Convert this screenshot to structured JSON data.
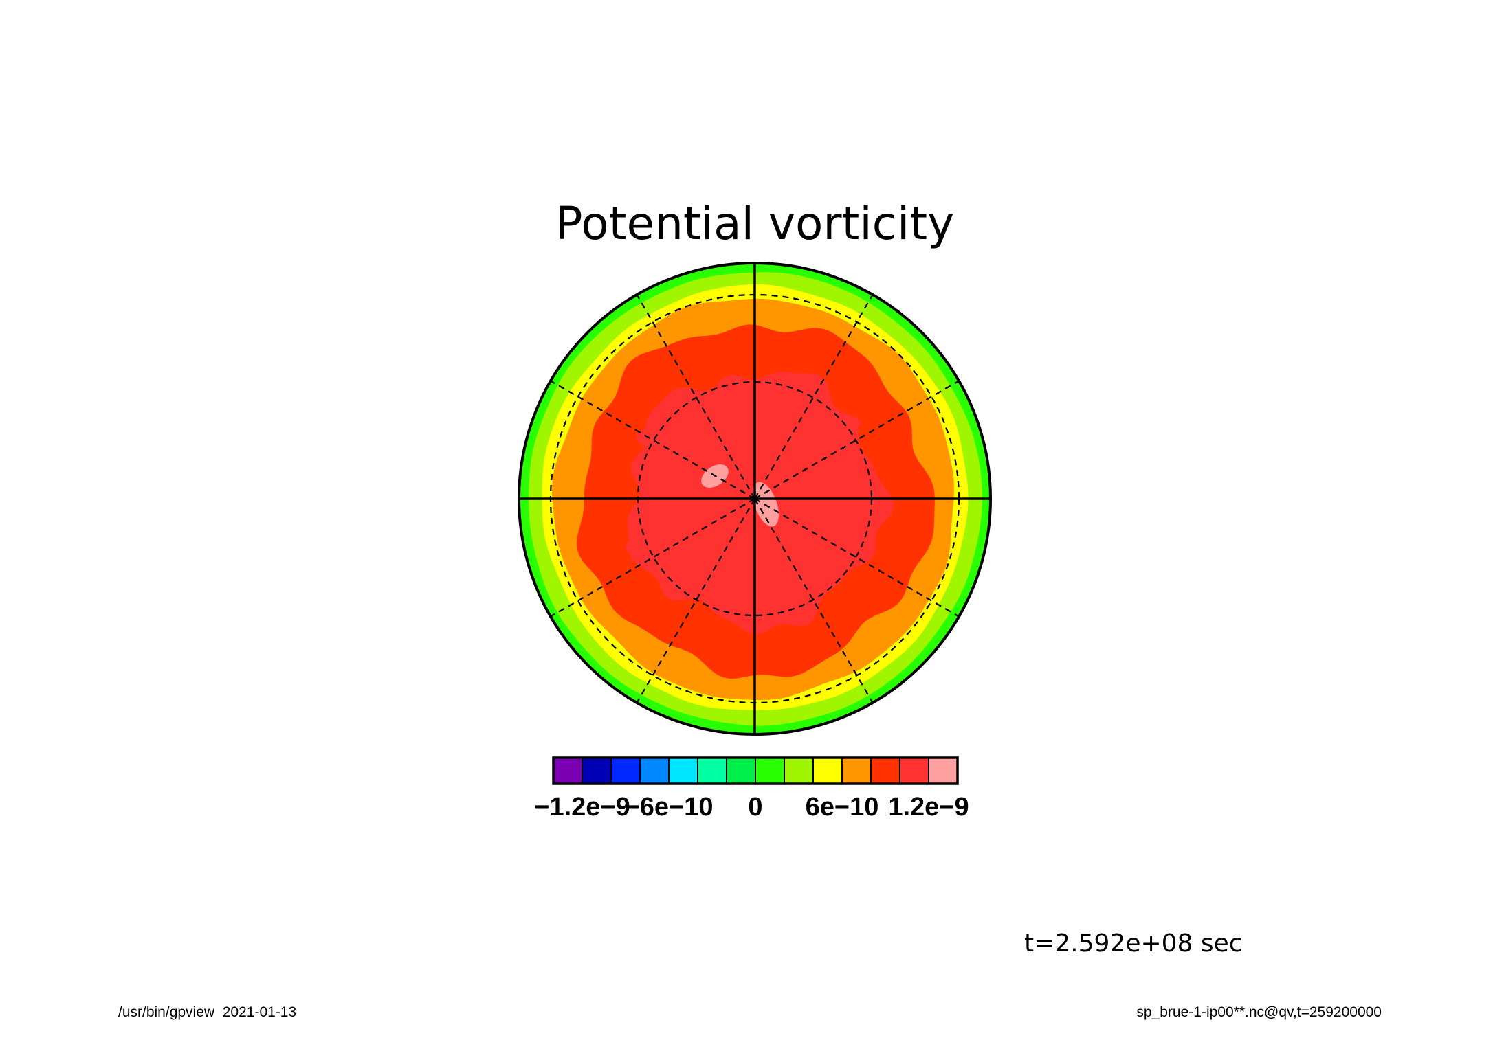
{
  "chart_data": {
    "type": "contour",
    "projection": "polar stereographic",
    "title": "Potential vorticity",
    "time_label": "t=2.592e+08 sec",
    "colorbar": {
      "colors": [
        "#7b00b4",
        "#0000b4",
        "#0028ff",
        "#0087ff",
        "#00e6ff",
        "#00ffa0",
        "#00f04b",
        "#28ff00",
        "#a0f500",
        "#ffff00",
        "#ff9600",
        "#ff3200",
        "#ff3232",
        "#ffa0a0"
      ],
      "tick_labels": [
        "−1.2e−9",
        "−6e−10",
        "0",
        "6e−10",
        "1.2e−9"
      ],
      "tick_values": [
        -1.2e-09,
        -6e-10,
        0,
        6e-10,
        1.2e-09
      ],
      "range": [
        -1.4e-09,
        1.4e-09
      ],
      "interval": 2e-10
    },
    "field_levels_outer_to_center": [
      {
        "level": "green",
        "color": "#28ff00",
        "range": [
          0,
          2e-10
        ]
      },
      {
        "level": "yellow-green",
        "color": "#a0f500",
        "range": [
          2e-10,
          4e-10
        ]
      },
      {
        "level": "yellow",
        "color": "#ffff00",
        "range": [
          4e-10,
          6e-10
        ]
      },
      {
        "level": "orange",
        "color": "#ff9600",
        "range": [
          6e-10,
          8e-10
        ]
      },
      {
        "level": "red-orange",
        "color": "#ff3200",
        "range": [
          8e-10,
          1e-09
        ]
      },
      {
        "level": "red",
        "color": "#ff3232",
        "range": [
          1e-09,
          1.2e-09
        ]
      },
      {
        "level": "pink",
        "color": "#ffa0a0",
        "range": [
          1.2e-09,
          1.4e-09
        ]
      }
    ]
  },
  "footer": {
    "left": "/usr/bin/gpview  2021-01-13",
    "right": "sp_brue-1-ip00**.nc@qv,t=259200000"
  }
}
